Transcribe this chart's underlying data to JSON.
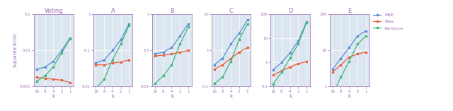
{
  "subplots": [
    {
      "title": "Voting",
      "x": [
        16,
        8,
        4,
        2,
        1
      ],
      "mse": [
        0.003,
        0.0035,
        0.005,
        0.01,
        0.022
      ],
      "bias": [
        0.0018,
        0.0017,
        0.0016,
        0.0015,
        0.0013
      ],
      "variance": [
        0.0014,
        0.002,
        0.0035,
        0.0085,
        0.021
      ],
      "ylim": [
        0.001,
        0.1
      ],
      "yticks": [
        0.001,
        0.01,
        0.1
      ]
    },
    {
      "title": "A",
      "x": [
        16,
        8,
        4,
        2,
        1
      ],
      "mse": [
        0.045,
        0.055,
        0.1,
        0.2,
        0.55
      ],
      "bias": [
        0.04,
        0.04,
        0.045,
        0.048,
        0.055
      ],
      "variance": [
        0.009,
        0.016,
        0.055,
        0.15,
        0.5
      ],
      "ylim": [
        0.01,
        1
      ],
      "yticks": [
        0.01,
        0.1,
        1
      ]
    },
    {
      "title": "B",
      "x": [
        16,
        8,
        4,
        2,
        1
      ],
      "mse": [
        0.08,
        0.09,
        0.12,
        0.25,
        0.55
      ],
      "bias": [
        0.07,
        0.075,
        0.08,
        0.09,
        0.1
      ],
      "variance": [
        0.012,
        0.02,
        0.04,
        0.15,
        0.45
      ],
      "ylim": [
        0.01,
        1
      ],
      "yticks": [
        0.01,
        0.1,
        1
      ]
    },
    {
      "title": "C",
      "x": [
        16,
        8,
        4,
        2,
        1
      ],
      "mse": [
        0.4,
        0.6,
        1.5,
        3.0,
        7.0
      ],
      "bias": [
        0.3,
        0.4,
        0.6,
        0.9,
        1.2
      ],
      "variance": [
        0.12,
        0.18,
        0.5,
        2.0,
        5.5
      ],
      "ylim": [
        0.1,
        10
      ],
      "yticks": [
        0.1,
        1,
        10
      ]
    },
    {
      "title": "D",
      "x": [
        16,
        8,
        4,
        2,
        1
      ],
      "mse": [
        0.5,
        1.0,
        2.5,
        8.0,
        50.0
      ],
      "bias": [
        0.3,
        0.45,
        0.65,
        0.9,
        1.1
      ],
      "variance": [
        0.13,
        0.4,
        1.5,
        6.0,
        45.0
      ],
      "ylim": [
        0.1,
        100
      ],
      "yticks": [
        0.1,
        1,
        10,
        100
      ]
    },
    {
      "title": "E",
      "x": [
        16,
        8,
        4,
        2,
        1
      ],
      "mse": [
        3.0,
        6.0,
        12.0,
        25.0,
        35.0
      ],
      "bias": [
        2.5,
        4.0,
        6.5,
        8.0,
        9.0
      ],
      "variance": [
        0.6,
        1.8,
        5.0,
        15.0,
        25.0
      ],
      "ylim": [
        1,
        100
      ],
      "yticks": [
        1,
        10,
        100
      ]
    }
  ],
  "colors": {
    "mse": "#5b8ed6",
    "bias": "#e8603c",
    "variance": "#3cb87a"
  },
  "xlabel": "k",
  "ylabel": "Squared Error",
  "bg_color": "#dce6f0",
  "title_color": "#9b6bb5",
  "axis_color": "#9b6bb5",
  "legend_labels": [
    "MSE",
    "Bias",
    "Variance"
  ]
}
